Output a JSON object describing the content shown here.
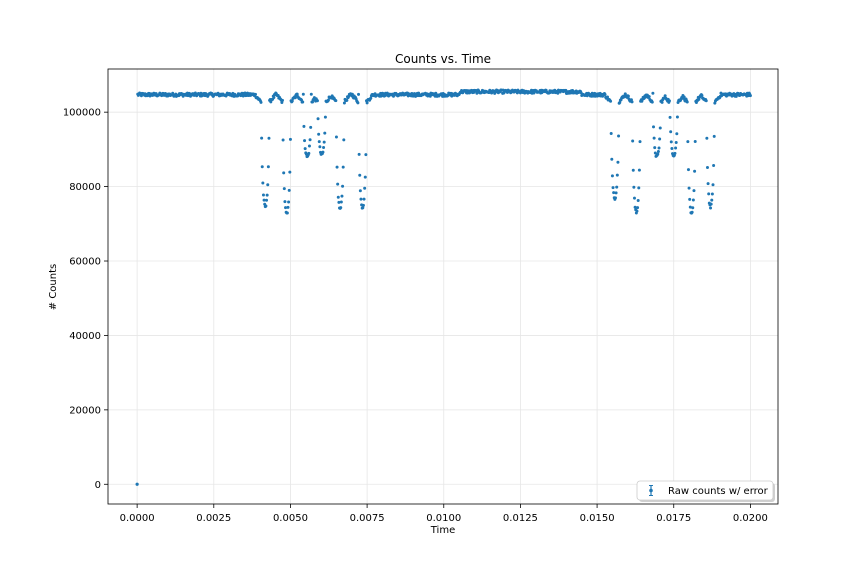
{
  "chart_data": {
    "type": "scatter",
    "title": "Counts vs. Time",
    "xlabel": "Time",
    "ylabel": "# Counts",
    "xlim": [
      -0.00095,
      0.0209
    ],
    "ylim": [
      -5300,
      111600
    ],
    "xticks": [
      0.0,
      0.0025,
      0.005,
      0.0075,
      0.01,
      0.0125,
      0.015,
      0.0175,
      0.02
    ],
    "xtick_labels": [
      "0.0000",
      "0.0025",
      "0.0050",
      "0.0075",
      "0.0100",
      "0.0125",
      "0.0150",
      "0.0175",
      "0.0200"
    ],
    "yticks": [
      0,
      20000,
      40000,
      60000,
      80000,
      100000
    ],
    "ytick_labels": [
      "0",
      "20000",
      "40000",
      "60000",
      "80000",
      "100000"
    ],
    "grid": true,
    "legend_position": "lower-right",
    "series": [
      {
        "name": "Raw counts w/ error",
        "color": "#1f77b4",
        "marker": "point-with-errorbar",
        "sample_interval": 2e-05,
        "x_start": 0.0,
        "x_end": 0.02,
        "first_point": [
          0.0,
          0
        ],
        "baseline": 105500,
        "dips": [
          {
            "center": 0.00418,
            "min": 74500
          },
          {
            "center": 0.00488,
            "min": 72500
          },
          {
            "center": 0.00555,
            "min": 88000
          },
          {
            "center": 0.00602,
            "min": 88500
          },
          {
            "center": 0.00662,
            "min": 74000
          },
          {
            "center": 0.00735,
            "min": 74500
          },
          {
            "center": 0.01558,
            "min": 77000
          },
          {
            "center": 0.01628,
            "min": 73000
          },
          {
            "center": 0.01695,
            "min": 88000
          },
          {
            "center": 0.0175,
            "min": 88500
          },
          {
            "center": 0.01808,
            "min": 72500
          },
          {
            "center": 0.0187,
            "min": 74500
          }
        ]
      }
    ]
  }
}
